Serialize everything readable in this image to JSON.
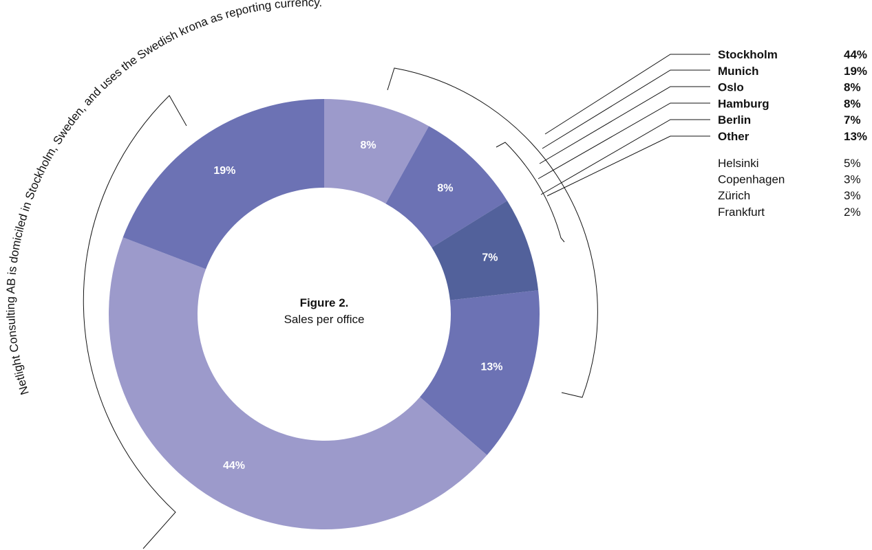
{
  "chart_data": {
    "type": "pie",
    "title": "Figure 2.",
    "subtitle": "Sales per office",
    "annotation": "Netlight Consulting AB is domiciled in Stockholm, Sweden, and uses the Swedish krona as reporting currency.",
    "slices": [
      {
        "label": "Stockholm",
        "value": 44,
        "display": "44%",
        "color": "#9c9acb"
      },
      {
        "label": "Munich",
        "value": 19,
        "display": "19%",
        "color": "#6c72b4"
      },
      {
        "label": "Oslo",
        "value": 8,
        "display": "8%",
        "color": "#9c9acb"
      },
      {
        "label": "Hamburg",
        "value": 8,
        "display": "8%",
        "color": "#6c72b4"
      },
      {
        "label": "Berlin",
        "value": 7,
        "display": "7%",
        "color": "#52619b"
      },
      {
        "label": "Other",
        "value": 13,
        "display": "13%",
        "color": "#6c72b4"
      }
    ],
    "other_breakdown": [
      {
        "label": "Helsinki",
        "display": "5%"
      },
      {
        "label": "Copenhagen",
        "display": "3%"
      },
      {
        "label": "Zürich",
        "display": "3%"
      },
      {
        "label": "Frankfurt",
        "display": "2%"
      }
    ]
  }
}
